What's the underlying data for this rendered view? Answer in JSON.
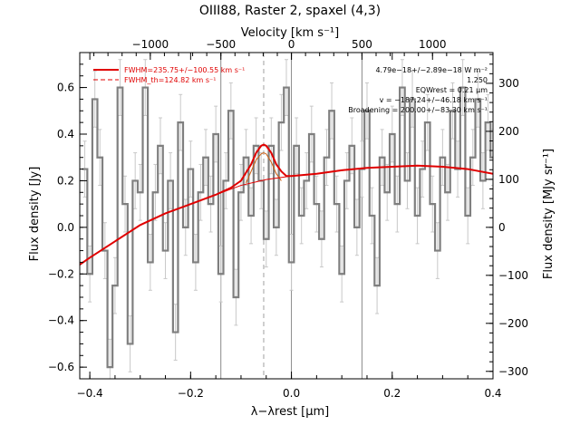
{
  "chart_data": {
    "type": "line",
    "title": "OIII88, Raster 2, spaxel (4,3)",
    "xlabel": "λ−λrest [μm]",
    "ylabel": "Flux density [Jy]",
    "top_axis_label": "Velocity [km s⁻¹]",
    "right_axis_label": "Flux density [MJy sr⁻¹]",
    "xlim": [
      -0.42,
      0.4
    ],
    "ylim": [
      -0.65,
      0.75
    ],
    "x_ticks": [
      -0.4,
      -0.2,
      0.0,
      0.2,
      0.4
    ],
    "x_tick_labels": [
      "−0.4",
      "−0.2",
      "0.0",
      "0.2",
      "0.4"
    ],
    "y_ticks": [
      -0.6,
      -0.4,
      -0.2,
      0.0,
      0.2,
      0.4,
      0.6
    ],
    "y_tick_labels": [
      "−0.6",
      "−0.4",
      "−0.2",
      "0.0",
      "0.2",
      "0.4",
      "0.6"
    ],
    "top_ticks": [
      -1000,
      -500,
      0,
      500,
      1000
    ],
    "top_tick_labels": [
      "−1000",
      "−500",
      "0",
      "500",
      "1000"
    ],
    "right_ticks": [
      -300,
      -200,
      -100,
      0,
      100,
      200,
      300
    ],
    "right_tick_labels": [
      "−300",
      "−200",
      "−100",
      "0",
      "100",
      "200",
      "300"
    ],
    "vertical_lines": [
      -0.14,
      0.0,
      0.14
    ],
    "dashed_line_x": -0.055,
    "legend": [
      {
        "label": "FWHM=235.75+/−100.55 km s⁻¹",
        "style": "solid",
        "color": "#e00000"
      },
      {
        "label": "FWHM_th=124.82 km s⁻¹",
        "style": "dashed",
        "color": "#e00000"
      }
    ],
    "annotations": [
      "4.79e−18+/−2.89e−18 W m⁻²",
      "1.250",
      "EQWrest = 0.21 μm",
      "v = −187.24+/−46.18 km s⁻¹",
      "Broadening = 200.00+/−83.30 km s⁻¹"
    ],
    "series": [
      {
        "style": "step",
        "color": "#808080",
        "x": [
          -0.41,
          -0.4,
          -0.39,
          -0.38,
          -0.37,
          -0.36,
          -0.35,
          -0.34,
          -0.33,
          -0.32,
          -0.31,
          -0.3,
          -0.29,
          -0.28,
          -0.27,
          -0.26,
          -0.25,
          -0.24,
          -0.23,
          -0.22,
          -0.21,
          -0.2,
          -0.19,
          -0.18,
          -0.17,
          -0.16,
          -0.15,
          -0.14,
          -0.13,
          -0.12,
          -0.11,
          -0.1,
          -0.09,
          -0.08,
          -0.07,
          -0.06,
          -0.05,
          -0.04,
          -0.03,
          -0.02,
          -0.01,
          0.0,
          0.01,
          0.02,
          0.03,
          0.04,
          0.05,
          0.06,
          0.07,
          0.08,
          0.09,
          0.1,
          0.11,
          0.12,
          0.13,
          0.14,
          0.15,
          0.16,
          0.17,
          0.18,
          0.19,
          0.2,
          0.21,
          0.22,
          0.23,
          0.24,
          0.25,
          0.26,
          0.27,
          0.28,
          0.29,
          0.3,
          0.31,
          0.32,
          0.33,
          0.34,
          0.35,
          0.36,
          0.37,
          0.38,
          0.39,
          0.4
        ],
        "y": [
          0.25,
          -0.2,
          0.55,
          0.3,
          -0.1,
          -0.6,
          -0.25,
          0.6,
          0.1,
          -0.5,
          0.2,
          0.15,
          0.6,
          -0.15,
          0.15,
          0.35,
          -0.1,
          0.2,
          -0.45,
          0.45,
          0.0,
          0.25,
          -0.15,
          0.15,
          0.3,
          0.1,
          0.4,
          -0.2,
          0.2,
          0.5,
          -0.3,
          0.15,
          0.3,
          0.05,
          0.35,
          0.2,
          -0.05,
          0.35,
          0.0,
          0.45,
          0.6,
          -0.15,
          0.35,
          0.05,
          0.2,
          0.4,
          0.1,
          -0.05,
          0.3,
          0.5,
          0.1,
          -0.2,
          0.2,
          0.35,
          0.0,
          0.25,
          0.5,
          0.05,
          -0.25,
          0.3,
          0.15,
          0.4,
          0.1,
          0.6,
          0.2,
          0.55,
          0.05,
          0.25,
          0.45,
          0.1,
          -0.1,
          0.3,
          0.15,
          0.5,
          0.25,
          0.6,
          0.05,
          0.3,
          0.55,
          0.2,
          0.45,
          0.3
        ],
        "errors": [
          0.12,
          0.12,
          0.12,
          0.12,
          0.12,
          0.12,
          0.12,
          0.12,
          0.12,
          0.12,
          0.12,
          0.12,
          0.12,
          0.12,
          0.12,
          0.12,
          0.12,
          0.12,
          0.12,
          0.12,
          0.12,
          0.12,
          0.12,
          0.12,
          0.12,
          0.12,
          0.12,
          0.12,
          0.12,
          0.12,
          0.12,
          0.12,
          0.12,
          0.12,
          0.12,
          0.12,
          0.12,
          0.12,
          0.12,
          0.12,
          0.12,
          0.12,
          0.12,
          0.12,
          0.12,
          0.12,
          0.12,
          0.12,
          0.12,
          0.12,
          0.12,
          0.12,
          0.12,
          0.12,
          0.12,
          0.12,
          0.12,
          0.12,
          0.12,
          0.12,
          0.12,
          0.12,
          0.12,
          0.12,
          0.12,
          0.12,
          0.12,
          0.12,
          0.12,
          0.12,
          0.12,
          0.12,
          0.12,
          0.12,
          0.12,
          0.12,
          0.12,
          0.12,
          0.12,
          0.12,
          0.12,
          0.12
        ]
      },
      {
        "style": "line",
        "color": "#e00000",
        "x": [
          -0.42,
          -0.4,
          -0.35,
          -0.3,
          -0.25,
          -0.2,
          -0.15,
          -0.12,
          -0.1,
          -0.08,
          -0.07,
          -0.06,
          -0.055,
          -0.05,
          -0.04,
          -0.03,
          -0.02,
          -0.01,
          0.0,
          0.05,
          0.1,
          0.15,
          0.2,
          0.25,
          0.3,
          0.35,
          0.4
        ],
        "y": [
          -0.16,
          -0.13,
          -0.06,
          0.01,
          0.06,
          0.1,
          0.14,
          0.17,
          0.2,
          0.27,
          0.32,
          0.35,
          0.355,
          0.35,
          0.32,
          0.27,
          0.24,
          0.22,
          0.22,
          0.23,
          0.245,
          0.255,
          0.26,
          0.265,
          0.26,
          0.25,
          0.23
        ]
      },
      {
        "style": "thin",
        "color": "#e00000",
        "x": [
          -0.15,
          -0.1,
          -0.05,
          0.0,
          0.05
        ],
        "y": [
          0.14,
          0.18,
          0.205,
          0.22,
          0.23
        ]
      },
      {
        "style": "thin",
        "color": "#d06010",
        "x": [
          -0.09,
          -0.08,
          -0.07,
          -0.06,
          -0.055,
          -0.05,
          -0.04,
          -0.03,
          -0.02
        ],
        "y": [
          0.19,
          0.24,
          0.29,
          0.315,
          0.32,
          0.315,
          0.28,
          0.23,
          0.2
        ]
      }
    ]
  }
}
